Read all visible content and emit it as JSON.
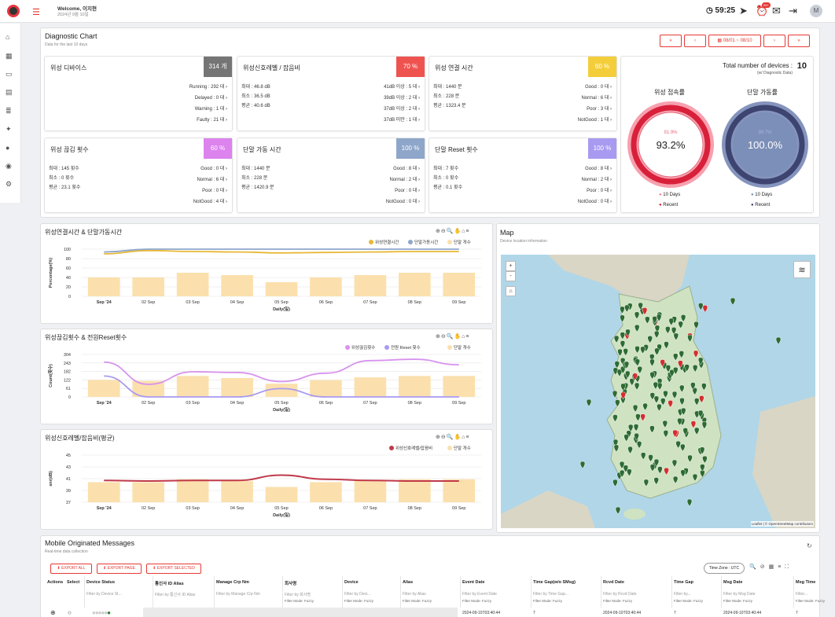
{
  "header": {
    "welcome": "Welcome, 이지현",
    "date": "2024년 9월 10일",
    "clock": "59:25",
    "badge": "99+",
    "avatar": "M",
    "icons": [
      "logo-icon",
      "menu-icon",
      "clock-icon",
      "send-icon",
      "alarm-icon",
      "chat-icon",
      "logout-icon"
    ]
  },
  "sidebar": [
    "home-icon",
    "dashboard-icon",
    "monitor-icon",
    "building-icon",
    "list-icon",
    "satellite-icon",
    "info-icon",
    "broadcast-icon",
    "settings-icon"
  ],
  "diag": {
    "title": "Diagnostic Chart",
    "sub": "Data for the last 10 days",
    "nav": [
      "«",
      "‹",
      "08/01 ~ 08/10",
      "›",
      "»"
    ],
    "cards": [
      {
        "title": "위성 디바이스",
        "badge": "314 개",
        "color": "#757575",
        "left": [],
        "right": [
          "Running : 292 대 ›",
          "Delayed : 0 대 ›",
          "Warning : 1 대 ›",
          "Faulty : 21 대 ›"
        ]
      },
      {
        "title": "위성신호레벨 / 잡음비",
        "badge": "70 %",
        "color": "#ef5350",
        "left": [
          "최대 : 46.8 dB",
          "최소 : 36.5 dB",
          "평균 : 40.6 dB"
        ],
        "right": [
          "41dB 이상 : 5 대 ›",
          "39dB 이상 : 2 대 ›",
          "37dB 이상 : 2 대 ›",
          "37dB 미만 : 1 대 ›"
        ]
      },
      {
        "title": "위성 연결 시간",
        "badge": "60 %",
        "color": "#f4ce3a",
        "left": [
          "최대 : 1440 분",
          "최소 : 228 분",
          "평균 : 1323.4 분"
        ],
        "right": [
          "Good : 0 대 ›",
          "Normal : 6 대 ›",
          "Poor : 3 대 ›",
          "NotGood : 1 대 ›"
        ]
      },
      {
        "title": "위성 끊김 횟수",
        "badge": "60 %",
        "color": "#dc83ee",
        "left": [
          "최대 : 145 횟수",
          "최소 : 0 횟수",
          "평균 : 23.1 횟수"
        ],
        "right": [
          "Good : 0 대 ›",
          "Normal : 6 대 ›",
          "Poor : 0 대 ›",
          "NotGood : 4 대 ›"
        ]
      },
      {
        "title": "단말 가동 시간",
        "badge": "100 %",
        "color": "#8ea6c9",
        "left": [
          "최대 : 1440 분",
          "최소 : 228 분",
          "평균 : 1420.9 분"
        ],
        "right": [
          "Good : 8 대 ›",
          "Normal : 2 대 ›",
          "Poor : 0 대 ›",
          "NotGood : 0 대 ›"
        ]
      },
      {
        "title": "단말 Reset 횟수",
        "badge": "100 %",
        "color": "#a89af0",
        "left": [
          "최대 : 7 횟수",
          "최소 : 0 횟수",
          "평균 : 0.1 횟수"
        ],
        "right": [
          "Good : 8 대 ›",
          "Normal : 2 대 ›",
          "Poor : 0 대 ›",
          "NotGood : 0 대 ›"
        ]
      }
    ],
    "total": {
      "label": "Total number of devices :",
      "value": "10",
      "sub": "(w/ Diagnostic Data)"
    },
    "gauges": [
      {
        "title": "위성 접속률",
        "inner": "91.9%",
        "outer": "93.2%",
        "l1": "10 Days",
        "l2": "Recent",
        "c1": "#f07f90",
        "c2": "#d8203a"
      },
      {
        "title": "단말 가동률",
        "inner": "99.7%",
        "outer": "100.0%",
        "l1": "10 Days",
        "l2": "Recent",
        "c1": "#7c8fb8",
        "c2": "#3d4470"
      }
    ]
  },
  "chart_data": [
    {
      "type": "bar",
      "title": "위성연결시간 & 단말가동시간",
      "ylabel": "Percentage(%)",
      "xlabel": "Daily(일)",
      "ylim": [
        0,
        100
      ],
      "yticks": [
        "100",
        "80",
        "60",
        "40",
        "20",
        "0"
      ],
      "categories": [
        "Sep '24",
        "02 Sep",
        "03 Sep",
        "04 Sep",
        "05 Sep",
        "06 Sep",
        "07 Sep",
        "08 Sep",
        "09 Sep"
      ],
      "series": [
        {
          "name": "위성연결시간",
          "type": "line",
          "color": "#e8b838",
          "values": [
            90,
            97,
            95,
            94,
            92,
            93,
            94,
            95,
            95
          ]
        },
        {
          "name": "단말가동시간",
          "type": "line",
          "color": "#8ea6c9",
          "values": [
            94,
            100,
            100,
            100,
            100,
            100,
            100,
            100,
            100
          ]
        },
        {
          "name": "단말 개수",
          "type": "bar",
          "color": "#fbe0ad",
          "values": [
            40,
            40,
            50,
            45,
            30,
            40,
            45,
            50,
            50
          ]
        }
      ]
    },
    {
      "type": "bar",
      "title": "위성끊김횟수 & 전원Reset횟수",
      "ylabel": "Count(횟수)",
      "xlabel": "Daily(일)",
      "ylim": [
        0,
        304
      ],
      "yticks": [
        "304",
        "243",
        "182",
        "122",
        "61",
        "0"
      ],
      "categories": [
        "Sep '24",
        "02 Sep",
        "03 Sep",
        "04 Sep",
        "05 Sep",
        "06 Sep",
        "07 Sep",
        "08 Sep",
        "09 Sep"
      ],
      "series": [
        {
          "name": "위성끊김횟수",
          "type": "line",
          "color": "#d793ee",
          "values": [
            250,
            90,
            180,
            175,
            110,
            170,
            260,
            270,
            230
          ]
        },
        {
          "name": "전원 Reset 횟수",
          "type": "line",
          "color": "#a89af0",
          "values": [
            150,
            0,
            0,
            0,
            60,
            0,
            0,
            0,
            0
          ]
        },
        {
          "name": "단말 개수",
          "type": "bar",
          "color": "#fbe0ad",
          "values": [
            122,
            115,
            150,
            135,
            95,
            120,
            140,
            150,
            150
          ]
        }
      ]
    },
    {
      "type": "bar",
      "title": "위성신호레벨/잡음비(평균)",
      "ylabel": "snr(dB)",
      "xlabel": "Daily(일)",
      "ylim": [
        37,
        45
      ],
      "yticks": [
        "45",
        "43",
        "41",
        "39",
        "37"
      ],
      "categories": [
        "Sep '24",
        "02 Sep",
        "03 Sep",
        "04 Sep",
        "05 Sep",
        "06 Sep",
        "07 Sep",
        "08 Sep",
        "09 Sep"
      ],
      "series": [
        {
          "name": "위성신호레벨/잡음비",
          "type": "line",
          "color": "#c0394a",
          "values": [
            40.7,
            40.6,
            40.7,
            40.7,
            41.6,
            40.9,
            40.7,
            40.6,
            40.6
          ]
        },
        {
          "name": "단말 개수",
          "type": "bar",
          "color": "#fbe0ad",
          "values": [
            40.4,
            40.4,
            40.9,
            40.6,
            39.6,
            40.4,
            40.6,
            40.9,
            40.9
          ]
        }
      ]
    }
  ],
  "map": {
    "title": "Map",
    "sub": "Device location information",
    "zoom_in": "+",
    "zoom_out": "-",
    "attribution": "Leaflet | © OpenStreetMap contributors"
  },
  "messages": {
    "title": "Mobile Originated Messages",
    "sub": "Real-time data collection",
    "buttons": [
      "EXPORT ALL",
      "EXPORT PAGE",
      "EXPORT SELECTED"
    ],
    "timezone": "Time Zone : UTC",
    "columns": [
      "Actions",
      "Select",
      "Device Status",
      "통신사 ID Alias",
      "Manage Crp Nm",
      "회사명",
      "Device",
      "Alias",
      "Event Date",
      "Time Gap(w/o SMsg)",
      "Rcvd Date",
      "Time Gap",
      "Msg Date",
      "Msg Time"
    ],
    "filters": [
      "Filter by Device St...",
      "Filter by 통신사 ID Alias",
      "Filter by Manage Crp Nm",
      "Filter by 회사명",
      "Filter by Devi...",
      "Filter by Alias",
      "Filter by Event Date",
      "Filter by Time Gap...",
      "Filter by Rcvd Date",
      "Filter by...",
      "Filter by Msg Date",
      "Filter..."
    ],
    "mode": "Filter Mode: Fuzzy",
    "row": {
      "event": "2024-09-10T03:40:44",
      "gap": "7",
      "rcvd": "2024-09-10T03:40:44",
      "gap2": "7",
      "msg": "2024-09-10T03:40:44",
      "msgt": "7"
    }
  }
}
